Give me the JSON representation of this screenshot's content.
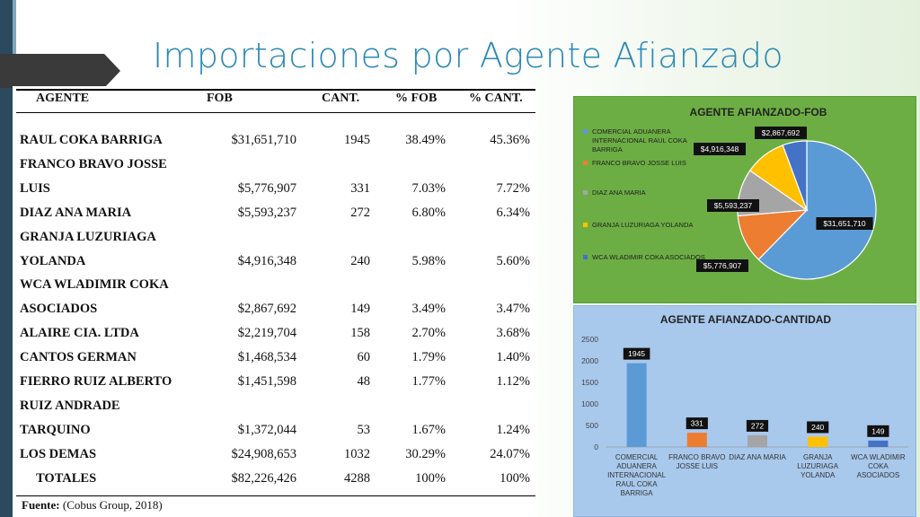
{
  "slide": {
    "title": "Importaciones por Agente Afianzado"
  },
  "table": {
    "headers": [
      "AGENTE",
      "FOB",
      "CANT.",
      "% FOB",
      "% CANT."
    ],
    "rows": [
      {
        "agente": [
          "RAUL COKA BARRIGA"
        ],
        "fob": "$31,651,710",
        "cant": "1945",
        "pct_fob": "38.49%",
        "pct_cant": "45.36%"
      },
      {
        "agente": [
          "FRANCO BRAVO JOSSE",
          "LUIS"
        ],
        "fob": "$5,776,907",
        "cant": "331",
        "pct_fob": "7.03%",
        "pct_cant": "7.72%"
      },
      {
        "agente": [
          "DIAZ ANA MARIA"
        ],
        "fob": "$5,593,237",
        "cant": "272",
        "pct_fob": "6.80%",
        "pct_cant": "6.34%"
      },
      {
        "agente": [
          "GRANJA LUZURIAGA",
          "YOLANDA"
        ],
        "fob": "$4,916,348",
        "cant": "240",
        "pct_fob": "5.98%",
        "pct_cant": "5.60%"
      },
      {
        "agente": [
          "WCA WLADIMIR COKA",
          "ASOCIADOS"
        ],
        "fob": "$2,867,692",
        "cant": "149",
        "pct_fob": "3.49%",
        "pct_cant": "3.47%"
      },
      {
        "agente": [
          "ALAIRE CIA. LTDA"
        ],
        "fob": "$2,219,704",
        "cant": "158",
        "pct_fob": "2.70%",
        "pct_cant": "3.68%"
      },
      {
        "agente": [
          "CANTOS GERMAN"
        ],
        "fob": "$1,468,534",
        "cant": "60",
        "pct_fob": "1.79%",
        "pct_cant": "1.40%"
      },
      {
        "agente": [
          "FIERRO RUIZ ALBERTO"
        ],
        "fob": "$1,451,598",
        "cant": "48",
        "pct_fob": "1.77%",
        "pct_cant": "1.12%"
      },
      {
        "agente": [
          "RUIZ ANDRADE",
          "TARQUINO"
        ],
        "fob": "$1,372,044",
        "cant": "53",
        "pct_fob": "1.67%",
        "pct_cant": "1.24%"
      },
      {
        "agente": [
          "LOS DEMAS"
        ],
        "fob": "$24,908,653",
        "cant": "1032",
        "pct_fob": "30.29%",
        "pct_cant": "24.07%"
      }
    ],
    "totals": {
      "label": "TOTALES",
      "fob": "$82,226,426",
      "cant": "4288",
      "pct_fob": "100%",
      "pct_cant": "100%"
    },
    "source_label": "Fuente:",
    "source_text": "(Cobus Group, 2018)"
  },
  "chart_data": [
    {
      "type": "pie",
      "title": "AGENTE AFIANZADO-FOB",
      "legend_position": "left",
      "categories": [
        "COMERCIAL ADUANERA INTERNACIONAL RAUL COKA BARRIGA",
        "FRANCO BRAVO JOSSE LUIS",
        "DIAZ ANA MARIA",
        "GRANJA LUZURIAGA YOLANDA",
        "WCA WLADIMIR COKA ASOCIADOS"
      ],
      "values": [
        31651710,
        5776907,
        5593237,
        4916348,
        2867692
      ],
      "data_labels": [
        "$31,651,710",
        "$5,776,907",
        "$5,593,237",
        "$4,916,348",
        "$2,867,692"
      ],
      "colors": [
        "#5b9bd5",
        "#ed7d31",
        "#a5a5a5",
        "#ffc000",
        "#4472c4"
      ]
    },
    {
      "type": "bar",
      "title": "AGENTE AFIANZADO-CANTIDAD",
      "categories": [
        [
          "COMERCIAL",
          "ADUANERA",
          "INTERNACIONAL",
          "RAUL COKA",
          "BARRIGA"
        ],
        [
          "FRANCO BRAVO",
          "JOSSE LUIS"
        ],
        [
          "DIAZ ANA MARIA"
        ],
        [
          "GRANJA",
          "LUZURIAGA",
          "YOLANDA"
        ],
        [
          "WCA WLADIMIR",
          "COKA",
          "ASOCIADOS"
        ]
      ],
      "values": [
        1945,
        331,
        272,
        240,
        149
      ],
      "data_labels": [
        "1945",
        "331",
        "272",
        "240",
        "149"
      ],
      "ylim": [
        0,
        2500
      ],
      "yticks": [
        0,
        500,
        1000,
        1500,
        2000,
        2500
      ],
      "grid": false,
      "colors": [
        "#5b9bd5",
        "#ed7d31",
        "#a5a5a5",
        "#ffc000",
        "#4472c4"
      ]
    }
  ]
}
